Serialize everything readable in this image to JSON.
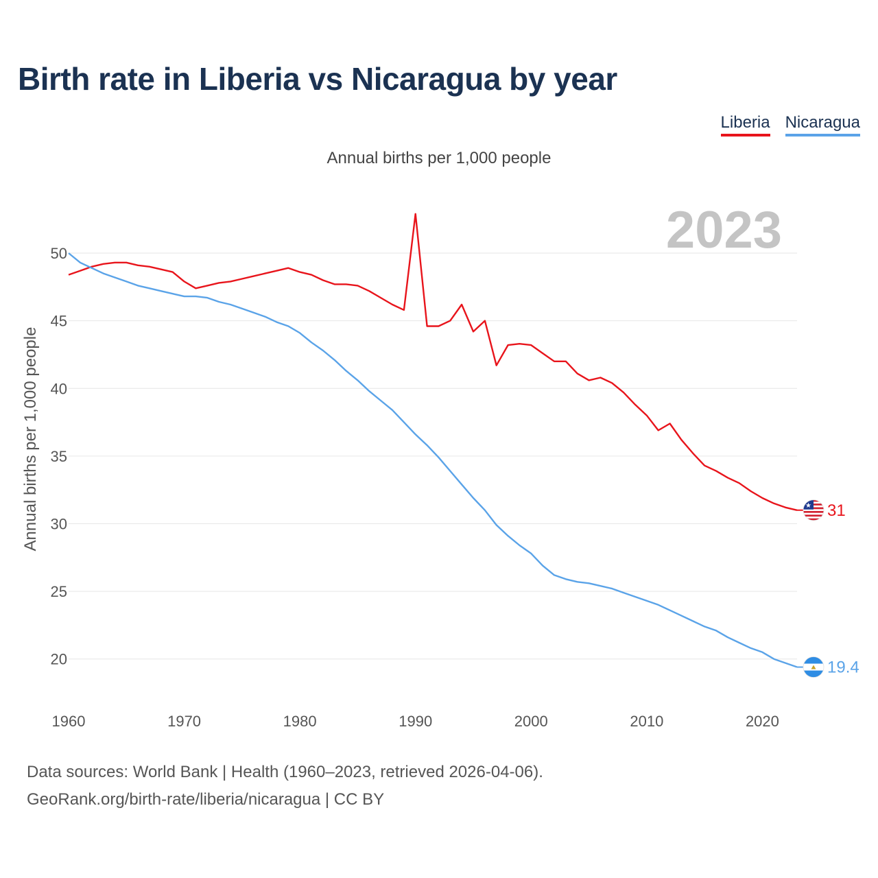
{
  "title": "Birth rate in Liberia vs Nicaragua by year",
  "legend": {
    "liberia": "Liberia",
    "nicaragua": "Nicaragua"
  },
  "subtitle": "Annual births per 1,000 people",
  "year_label": "2023",
  "footer": {
    "line1": "Data sources: World Bank | Health (1960–2023, retrieved 2026-04-06).",
    "line2": "GeoRank.org/birth-rate/liberia/nicaragua | CC BY"
  },
  "colors": {
    "liberia": "#e8141b",
    "nicaragua": "#5aa3e8",
    "title": "#1b3252",
    "grid": "#e6e6e6"
  },
  "icons": {
    "liberia": "liberia-flag-icon",
    "nicaragua": "nicaragua-flag-icon"
  },
  "chart_data": {
    "type": "line",
    "title": "Birth rate in Liberia vs Nicaragua by year",
    "xlabel": "",
    "ylabel": "Annual births per 1,000 people",
    "xlim": [
      1960,
      2023
    ],
    "ylim": [
      17.5,
      53.5
    ],
    "xticks": [
      1960,
      1970,
      1980,
      1990,
      2000,
      2010,
      2020
    ],
    "yticks": [
      20,
      25,
      30,
      35,
      40,
      45,
      50
    ],
    "grid": true,
    "legend_position": "top-right",
    "x": [
      1960,
      1961,
      1962,
      1963,
      1964,
      1965,
      1966,
      1967,
      1968,
      1969,
      1970,
      1971,
      1972,
      1973,
      1974,
      1975,
      1976,
      1977,
      1978,
      1979,
      1980,
      1981,
      1982,
      1983,
      1984,
      1985,
      1986,
      1987,
      1988,
      1989,
      1990,
      1991,
      1992,
      1993,
      1994,
      1995,
      1996,
      1997,
      1998,
      1999,
      2000,
      2001,
      2002,
      2003,
      2004,
      2005,
      2006,
      2007,
      2008,
      2009,
      2010,
      2011,
      2012,
      2013,
      2014,
      2015,
      2016,
      2017,
      2018,
      2019,
      2020,
      2021,
      2022,
      2023
    ],
    "series": [
      {
        "name": "Liberia",
        "end_label": "31",
        "values": [
          48.4,
          48.7,
          49.0,
          49.2,
          49.3,
          49.3,
          49.1,
          49.0,
          48.8,
          48.6,
          47.9,
          47.4,
          47.6,
          47.8,
          47.9,
          48.1,
          48.3,
          48.5,
          48.7,
          48.9,
          48.6,
          48.4,
          48.0,
          47.7,
          47.7,
          47.6,
          47.2,
          46.7,
          46.2,
          45.8,
          52.9,
          44.6,
          44.6,
          45.0,
          46.2,
          44.2,
          45.0,
          41.7,
          43.2,
          43.3,
          43.2,
          42.6,
          42.0,
          42.0,
          41.1,
          40.6,
          40.8,
          40.4,
          39.7,
          38.8,
          38.0,
          36.9,
          37.4,
          36.2,
          35.2,
          34.3,
          33.9,
          33.4,
          33.0,
          32.4,
          31.9,
          31.5,
          31.2,
          31.0
        ]
      },
      {
        "name": "Nicaragua",
        "end_label": "19.4",
        "values": [
          50.0,
          49.3,
          48.9,
          48.5,
          48.2,
          47.9,
          47.6,
          47.4,
          47.2,
          47.0,
          46.8,
          46.8,
          46.7,
          46.4,
          46.2,
          45.9,
          45.6,
          45.3,
          44.9,
          44.6,
          44.1,
          43.4,
          42.8,
          42.1,
          41.3,
          40.6,
          39.8,
          39.1,
          38.4,
          37.5,
          36.6,
          35.8,
          34.9,
          33.9,
          32.9,
          31.9,
          31.0,
          29.9,
          29.1,
          28.4,
          27.8,
          26.9,
          26.2,
          25.9,
          25.7,
          25.6,
          25.4,
          25.2,
          24.9,
          24.6,
          24.3,
          24.0,
          23.6,
          23.2,
          22.8,
          22.4,
          22.1,
          21.6,
          21.2,
          20.8,
          20.5,
          20.0,
          19.7,
          19.4
        ]
      }
    ]
  }
}
